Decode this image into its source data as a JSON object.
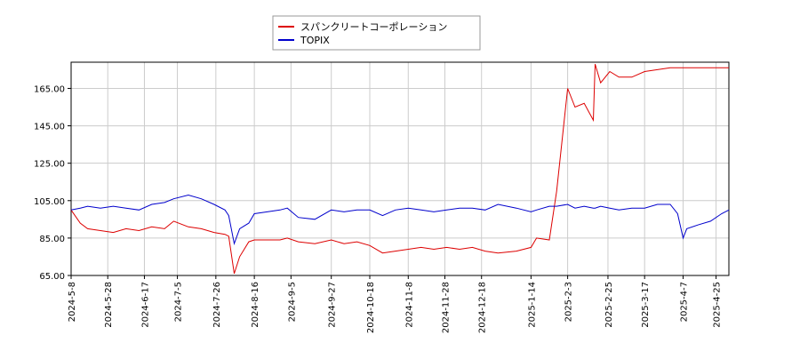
{
  "chart_data": {
    "type": "line",
    "x": [
      "2024-5-8",
      "2024-5-13",
      "2024-5-17",
      "2024-5-24",
      "2024-5-31",
      "2024-6-7",
      "2024-6-14",
      "2024-6-21",
      "2024-6-28",
      "2024-7-3",
      "2024-7-11",
      "2024-7-18",
      "2024-7-25",
      "2024-7-31",
      "2024-8-2",
      "2024-8-5",
      "2024-8-8",
      "2024-8-13",
      "2024-8-16",
      "2024-8-23",
      "2024-8-30",
      "2024-9-3",
      "2024-9-9",
      "2024-9-18",
      "2024-9-27",
      "2024-10-4",
      "2024-10-11",
      "2024-10-18",
      "2024-10-25",
      "2024-11-1",
      "2024-11-8",
      "2024-11-15",
      "2024-11-22",
      "2024-11-29",
      "2024-12-6",
      "2024-12-13",
      "2024-12-20",
      "2024-12-27",
      "2025-1-6",
      "2025-1-14",
      "2025-1-17",
      "2025-1-24",
      "2025-1-28",
      "2025-2-3",
      "2025-2-7",
      "2025-2-12",
      "2025-2-17",
      "2025-2-18",
      "2025-2-21",
      "2025-2-26",
      "2025-3-3",
      "2025-3-10",
      "2025-3-17",
      "2025-3-24",
      "2025-3-31",
      "2025-4-4",
      "2025-4-7",
      "2025-4-9",
      "2025-4-15",
      "2025-4-22",
      "2025-4-28",
      "2025-5-2"
    ],
    "series": [
      {
        "name": "スパンクリートコーポレーション",
        "color": "#dd0000",
        "values": [
          100,
          93,
          90,
          89,
          88,
          90,
          89,
          91,
          90,
          94,
          91,
          90,
          88,
          87,
          86,
          66,
          75,
          83,
          84,
          84,
          84,
          85,
          83,
          82,
          84,
          82,
          83,
          81,
          77,
          78,
          79,
          80,
          79,
          80,
          79,
          80,
          78,
          77,
          78,
          80,
          85,
          84,
          110,
          165,
          155,
          157,
          148,
          178,
          168,
          174,
          171,
          171,
          174,
          175,
          176,
          176,
          176,
          176,
          176,
          176,
          176,
          176
        ]
      },
      {
        "name": "TOPIX",
        "color": "#0000cc",
        "values": [
          100,
          101,
          102,
          101,
          102,
          101,
          100,
          103,
          104,
          106,
          108,
          106,
          103,
          100,
          97,
          82,
          90,
          93,
          98,
          99,
          100,
          101,
          96,
          95,
          100,
          99,
          100,
          100,
          97,
          100,
          101,
          100,
          99,
          100,
          101,
          101,
          100,
          103,
          101,
          99,
          100,
          102,
          102,
          103,
          101,
          102,
          101,
          101,
          102,
          101,
          100,
          101,
          101,
          103,
          103,
          98,
          85,
          90,
          92,
          94,
          98,
          100
        ]
      }
    ],
    "xlim": [
      "2024-5-8",
      "2025-5-2"
    ],
    "xticks": [
      "2024-5-8",
      "2024-5-28",
      "2024-6-17",
      "2024-7-5",
      "2024-7-26",
      "2024-8-16",
      "2024-9-5",
      "2024-9-27",
      "2024-10-18",
      "2024-11-8",
      "2024-11-28",
      "2024-12-18",
      "2025-1-14",
      "2025-2-3",
      "2025-2-25",
      "2025-3-17",
      "2025-4-7",
      "2025-4-25"
    ],
    "ylim": [
      65,
      179
    ],
    "yticks": [
      {
        "value": 65,
        "label": "65.00"
      },
      {
        "value": 85,
        "label": "85.00"
      },
      {
        "value": 105,
        "label": "105.00"
      },
      {
        "value": 125,
        "label": "125.00"
      },
      {
        "value": 145,
        "label": "145.00"
      },
      {
        "value": 165,
        "label": "165.00"
      }
    ],
    "grid": true
  }
}
